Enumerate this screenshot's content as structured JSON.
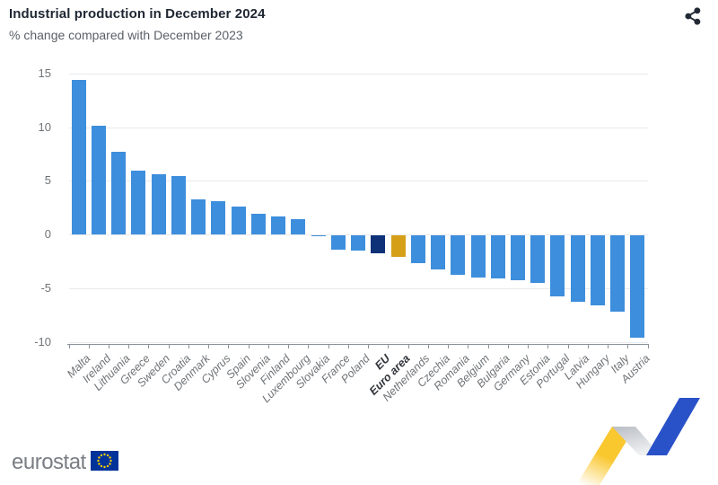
{
  "header": {
    "title": "Industrial production in December 2024",
    "subtitle": "% change compared with December 2023"
  },
  "colors": {
    "bar_default": "#3d8edc",
    "bar_eu": "#0e3178",
    "bar_euro_area": "#d5a018",
    "title_text": "#1f2733",
    "subtitle_text": "#5a6067",
    "axis_text": "#6f7377",
    "gridline": "#e8eaed",
    "axis_line": "#8d939a",
    "share_icon": "#232a36",
    "logo_text": "#797e84",
    "flag_blue": "#003399",
    "flag_stars": "#ffcc00",
    "ribbon_yellow": "#f9c72e",
    "ribbon_gray": "#c2c6cc",
    "ribbon_blue": "#2a52c8"
  },
  "chart_data": {
    "type": "bar",
    "title": "Industrial production in December 2024",
    "subtitle": "% change compared with December 2023",
    "xlabel": "",
    "ylabel": "",
    "grid": true,
    "legend": "none",
    "ylim": [
      -10.3,
      15.7
    ],
    "yticks": [
      15,
      10,
      5,
      0,
      -5,
      -10
    ],
    "categories": [
      "Malta",
      "Ireland",
      "Lithuania",
      "Greece",
      "Sweden",
      "Croatia",
      "Denmark",
      "Cyprus",
      "Spain",
      "Slovenia",
      "Finland",
      "Luxembourg",
      "Slovakia",
      "France",
      "Poland",
      "EU",
      "Euro area",
      "Netherlands",
      "Czechia",
      "Romania",
      "Belgium",
      "Bulgaria",
      "Germany",
      "Estonia",
      "Portugal",
      "Latvia",
      "Hungary",
      "Italy",
      "Austria"
    ],
    "values": [
      14.4,
      10.1,
      7.7,
      5.9,
      5.6,
      5.4,
      3.3,
      3.1,
      2.6,
      1.9,
      1.7,
      1.4,
      -0.1,
      -1.3,
      -1.4,
      -1.7,
      -2.0,
      -2.6,
      -3.2,
      -3.7,
      -3.9,
      -4.0,
      -4.2,
      -4.4,
      -5.7,
      -6.2,
      -6.5,
      -7.1,
      -9.5
    ],
    "emphasized": {
      "EU": "bar_eu",
      "Euro area": "bar_euro_area"
    },
    "bold_categories": [
      "EU",
      "Euro area"
    ]
  },
  "footer": {
    "logo_text": "eurostat"
  }
}
